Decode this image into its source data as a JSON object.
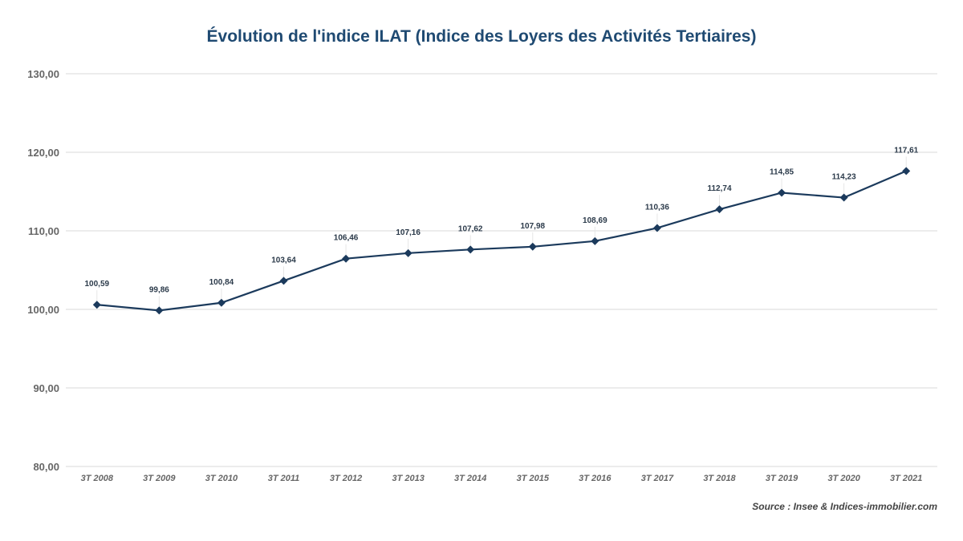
{
  "chart_data": {
    "type": "line",
    "title": "Évolution de l'indice ILAT (Indice des Loyers des Activités Tertiaires)",
    "xlabel": "",
    "ylabel": "",
    "categories": [
      "3T 2008",
      "3T 2009",
      "3T 2010",
      "3T 2011",
      "3T 2012",
      "3T 2013",
      "3T 2014",
      "3T 2015",
      "3T 2016",
      "3T 2017",
      "3T 2018",
      "3T 2019",
      "3T 2020",
      "3T 2021"
    ],
    "values": [
      100.59,
      99.86,
      100.84,
      103.64,
      106.46,
      107.16,
      107.62,
      107.98,
      108.69,
      110.36,
      112.74,
      114.85,
      114.23,
      117.61
    ],
    "data_labels": [
      "100,59",
      "99,86",
      "100,84",
      "103,64",
      "106,46",
      "107,16",
      "107,62",
      "107,98",
      "108,69",
      "110,36",
      "112,74",
      "114,85",
      "114,23",
      "117,61"
    ],
    "ylim": [
      80,
      130
    ],
    "yticks": [
      80,
      90,
      100,
      110,
      120,
      130
    ],
    "ytick_labels": [
      "80,00",
      "90,00",
      "100,00",
      "110,00",
      "120,00",
      "130,00"
    ],
    "grid": true,
    "legend": "none",
    "marker": "diamond",
    "colors": {
      "line": "#1b3a5c",
      "grid": "#d9d9d9",
      "title": "#1f4a72"
    },
    "source": "Source : Insee & Indices-immobilier.com"
  }
}
